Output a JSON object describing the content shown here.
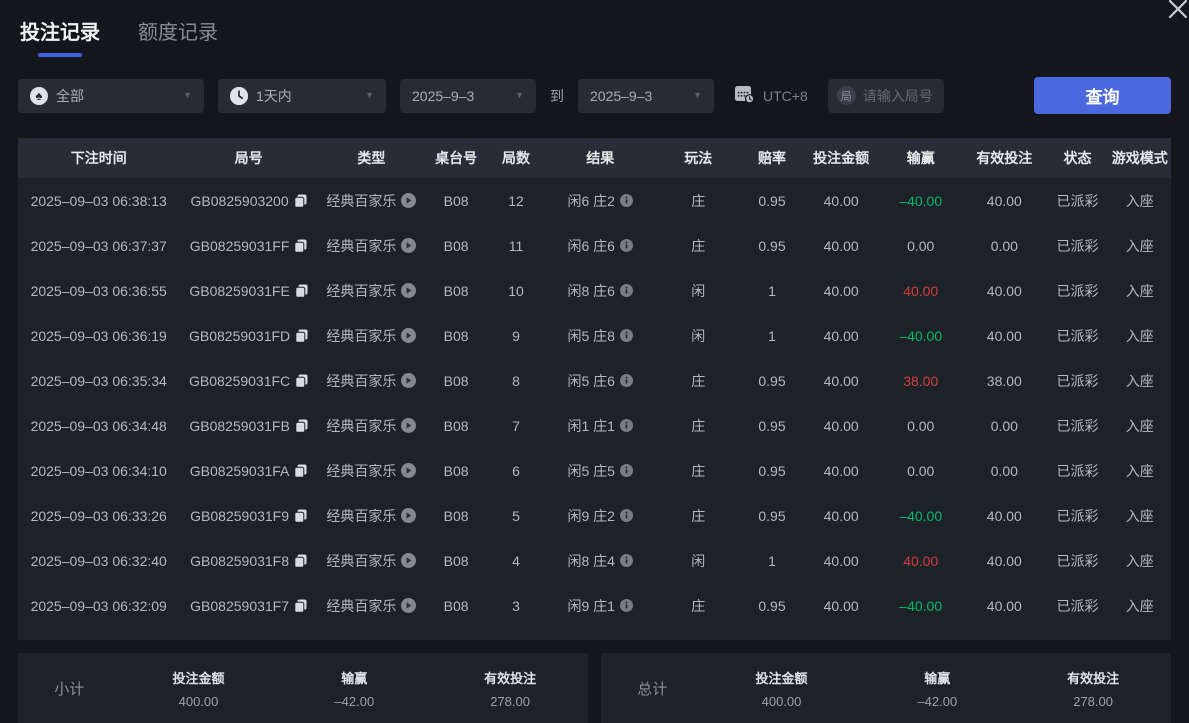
{
  "tabs": [
    {
      "label": "投注记录",
      "active": true
    },
    {
      "label": "额度记录",
      "active": false
    }
  ],
  "filters": {
    "game_type": {
      "value": "全部",
      "icon": "spade"
    },
    "time_range": {
      "value": "1天内",
      "icon": "clock"
    },
    "date_from": "2025–9–3",
    "to_label": "到",
    "date_to": "2025–9–3",
    "timezone": "UTC+8",
    "round_icon_char": "局",
    "round_placeholder": "请输入局号",
    "query_label": "查询"
  },
  "table": {
    "columns": [
      "下注时间",
      "局号",
      "类型",
      "桌台号",
      "局数",
      "结果",
      "玩法",
      "赔率",
      "投注金额",
      "输赢",
      "有效投注",
      "状态",
      "游戏模式"
    ],
    "rows": [
      {
        "time": "2025–09–03 06:38:13",
        "round_id": "GB0825903200",
        "type": "经典百家乐",
        "table_no": "B08",
        "round_no": "12",
        "result": "闲6 庄2",
        "play": "庄",
        "odds": "0.95",
        "bet": "40.00",
        "win_loss": "–40.00",
        "valid": "40.00",
        "status": "已派彩",
        "mode": "入座"
      },
      {
        "time": "2025–09–03 06:37:37",
        "round_id": "GB08259031FF",
        "type": "经典百家乐",
        "table_no": "B08",
        "round_no": "11",
        "result": "闲6 庄6",
        "play": "庄",
        "odds": "0.95",
        "bet": "40.00",
        "win_loss": "0.00",
        "valid": "0.00",
        "status": "已派彩",
        "mode": "入座"
      },
      {
        "time": "2025–09–03 06:36:55",
        "round_id": "GB08259031FE",
        "type": "经典百家乐",
        "table_no": "B08",
        "round_no": "10",
        "result": "闲8 庄6",
        "play": "闲",
        "odds": "1",
        "bet": "40.00",
        "win_loss": "40.00",
        "valid": "40.00",
        "status": "已派彩",
        "mode": "入座"
      },
      {
        "time": "2025–09–03 06:36:19",
        "round_id": "GB08259031FD",
        "type": "经典百家乐",
        "table_no": "B08",
        "round_no": "9",
        "result": "闲5 庄8",
        "play": "闲",
        "odds": "1",
        "bet": "40.00",
        "win_loss": "–40.00",
        "valid": "40.00",
        "status": "已派彩",
        "mode": "入座"
      },
      {
        "time": "2025–09–03 06:35:34",
        "round_id": "GB08259031FC",
        "type": "经典百家乐",
        "table_no": "B08",
        "round_no": "8",
        "result": "闲5 庄6",
        "play": "庄",
        "odds": "0.95",
        "bet": "40.00",
        "win_loss": "38.00",
        "valid": "38.00",
        "status": "已派彩",
        "mode": "入座"
      },
      {
        "time": "2025–09–03 06:34:48",
        "round_id": "GB08259031FB",
        "type": "经典百家乐",
        "table_no": "B08",
        "round_no": "7",
        "result": "闲1 庄1",
        "play": "庄",
        "odds": "0.95",
        "bet": "40.00",
        "win_loss": "0.00",
        "valid": "0.00",
        "status": "已派彩",
        "mode": "入座"
      },
      {
        "time": "2025–09–03 06:34:10",
        "round_id": "GB08259031FA",
        "type": "经典百家乐",
        "table_no": "B08",
        "round_no": "6",
        "result": "闲5 庄5",
        "play": "庄",
        "odds": "0.95",
        "bet": "40.00",
        "win_loss": "0.00",
        "valid": "0.00",
        "status": "已派彩",
        "mode": "入座"
      },
      {
        "time": "2025–09–03 06:33:26",
        "round_id": "GB08259031F9",
        "type": "经典百家乐",
        "table_no": "B08",
        "round_no": "5",
        "result": "闲9 庄2",
        "play": "庄",
        "odds": "0.95",
        "bet": "40.00",
        "win_loss": "–40.00",
        "valid": "40.00",
        "status": "已派彩",
        "mode": "入座"
      },
      {
        "time": "2025–09–03 06:32:40",
        "round_id": "GB08259031F8",
        "type": "经典百家乐",
        "table_no": "B08",
        "round_no": "4",
        "result": "闲8 庄4",
        "play": "闲",
        "odds": "1",
        "bet": "40.00",
        "win_loss": "40.00",
        "valid": "40.00",
        "status": "已派彩",
        "mode": "入座"
      },
      {
        "time": "2025–09–03 06:32:09",
        "round_id": "GB08259031F7",
        "type": "经典百家乐",
        "table_no": "B08",
        "round_no": "3",
        "result": "闲9 庄1",
        "play": "庄",
        "odds": "0.95",
        "bet": "40.00",
        "win_loss": "–40.00",
        "valid": "40.00",
        "status": "已派彩",
        "mode": "入座"
      }
    ]
  },
  "summary": {
    "subtotal": {
      "label": "小计",
      "bet_label": "投注金额",
      "bet": "400.00",
      "wl_label": "输赢",
      "wl": "–42.00",
      "valid_label": "有效投注",
      "valid": "278.00"
    },
    "total": {
      "label": "总计",
      "bet_label": "投注金额",
      "bet": "400.00",
      "wl_label": "输赢",
      "wl": "–42.00",
      "valid_label": "有效投注",
      "valid": "278.00"
    }
  },
  "colors": {
    "accent": "#4c68df",
    "win_red": "#d43d3d",
    "loss_green": "#00b96b"
  }
}
